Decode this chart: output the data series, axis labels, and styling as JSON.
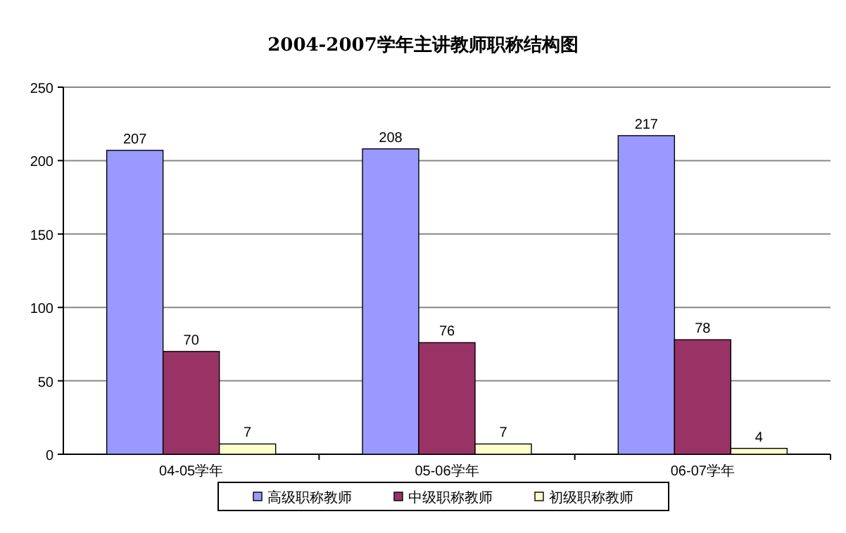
{
  "chart_data": {
    "type": "bar",
    "title": "2004-2007学年主讲教师职称结构图",
    "categories": [
      "04-05学年",
      "05-06学年",
      "06-07学年"
    ],
    "series": [
      {
        "name": "高级职称教师",
        "color": "#9999ff",
        "values": [
          207,
          208,
          217
        ]
      },
      {
        "name": "中级职称教师",
        "color": "#993366",
        "values": [
          70,
          76,
          78
        ]
      },
      {
        "name": "初级职称教师",
        "color": "#ffffcc",
        "values": [
          7,
          7,
          4
        ]
      }
    ],
    "ylim": [
      0,
      250
    ],
    "yticks": [
      0,
      50,
      100,
      150,
      200,
      250
    ],
    "grid": "y",
    "legend": "bottom",
    "data_labels": true
  }
}
